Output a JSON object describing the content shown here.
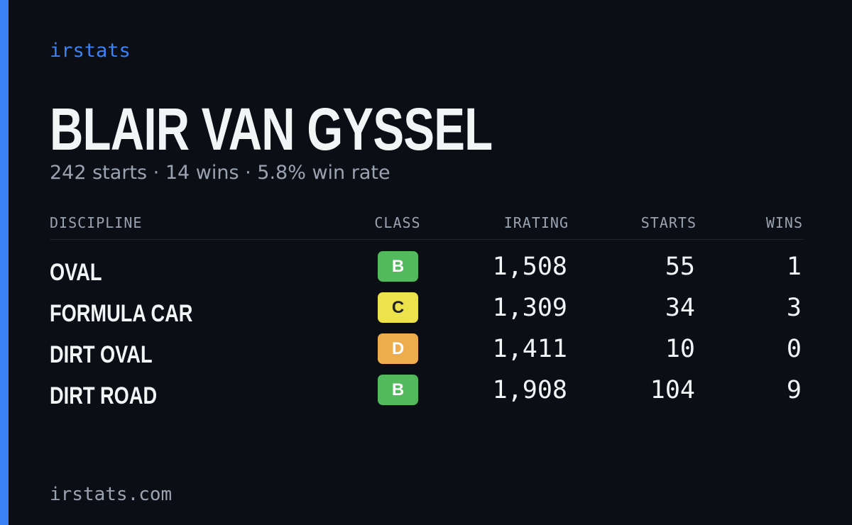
{
  "brand": "irstats",
  "name": "BLAIR VAN GYSSEL",
  "summary": "242 starts · 14 wins · 5.8% win rate",
  "table": {
    "headers": [
      "DISCIPLINE",
      "CLASS",
      "IRATING",
      "STARTS",
      "WINS"
    ],
    "rows": [
      {
        "discipline": "OVAL",
        "class": "B",
        "class_color": "#52b95c",
        "class_text_color": "#ffffff",
        "irating": "1,508",
        "starts": "55",
        "wins": "1"
      },
      {
        "discipline": "FORMULA CAR",
        "class": "C",
        "class_color": "#ece24b",
        "class_text_color": "#222222",
        "irating": "1,309",
        "starts": "34",
        "wins": "3"
      },
      {
        "discipline": "DIRT OVAL",
        "class": "D",
        "class_color": "#eead4c",
        "class_text_color": "#ffffff",
        "irating": "1,411",
        "starts": "10",
        "wins": "0"
      },
      {
        "discipline": "DIRT ROAD",
        "class": "B",
        "class_color": "#52b95c",
        "class_text_color": "#ffffff",
        "irating": "1,908",
        "starts": "104",
        "wins": "9"
      }
    ]
  },
  "footer": "irstats.com"
}
